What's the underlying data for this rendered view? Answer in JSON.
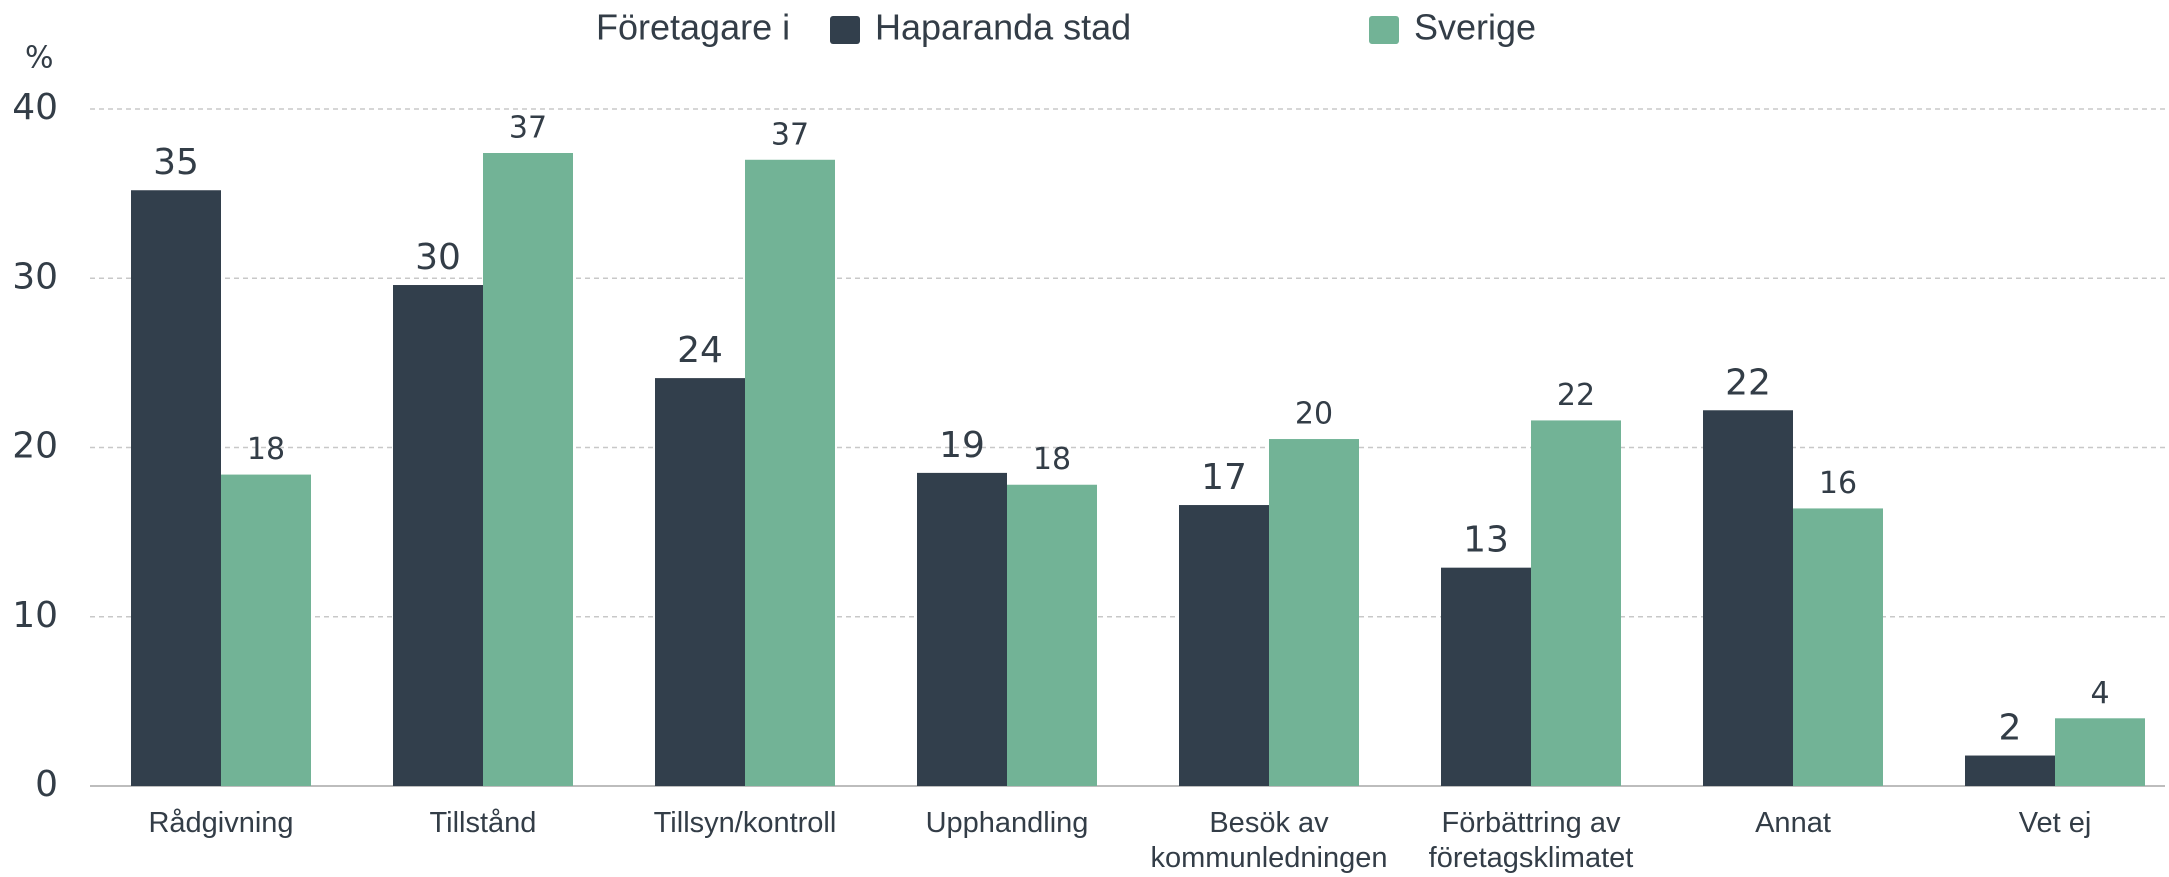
{
  "chart_data": {
    "type": "bar",
    "legend_title": "Företagare i",
    "y_label": "%",
    "categories": [
      "Rådgivning",
      "Tillstånd",
      "Tillsyn/kontroll",
      "Upphandling",
      "Besök av kommunledningen",
      "Förbättring av företagsklimatet",
      "Annat",
      "Vet ej"
    ],
    "series": [
      {
        "name": "Haparanda stad",
        "color": "#323f4c",
        "values": [
          35.2,
          29.6,
          24.1,
          18.5,
          16.6,
          12.9,
          22.2,
          1.8
        ],
        "value_labels": [
          "35",
          "30",
          "24",
          "19",
          "17",
          "13",
          "22",
          "2"
        ]
      },
      {
        "name": "Sverige",
        "color": "#72b396",
        "values": [
          18.4,
          37.4,
          37.0,
          17.8,
          20.5,
          21.6,
          16.4,
          4.0
        ],
        "value_labels": [
          "18",
          "37",
          "37",
          "18",
          "20",
          "22",
          "16",
          "4"
        ]
      }
    ],
    "ylim": [
      0,
      40
    ],
    "yticks": [
      0,
      10,
      20,
      30,
      40
    ],
    "grid": true,
    "legend": "top"
  }
}
